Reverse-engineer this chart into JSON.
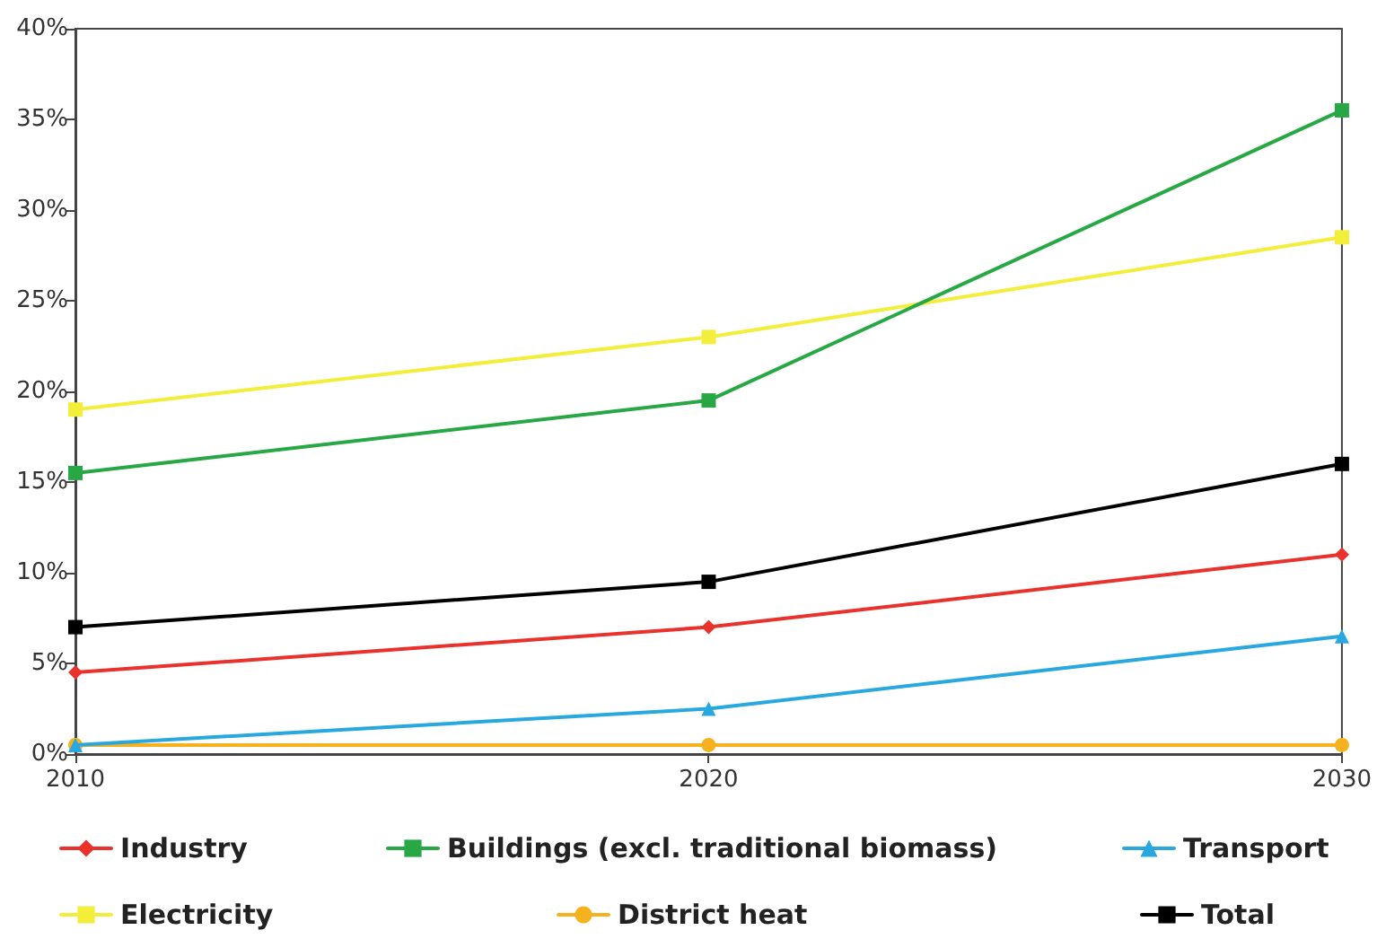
{
  "chart_data": {
    "type": "line",
    "x": [
      2010,
      2020,
      2030
    ],
    "xlim": [
      2010,
      2030
    ],
    "xticks": [
      2010,
      2020,
      2030
    ],
    "ylim": [
      0,
      40
    ],
    "yticks": [
      {
        "value": 0,
        "label": "0%"
      },
      {
        "value": 5,
        "label": "5%"
      },
      {
        "value": 10,
        "label": "10%"
      },
      {
        "value": 15,
        "label": "15%"
      },
      {
        "value": 20,
        "label": "20%"
      },
      {
        "value": 25,
        "label": "25%"
      },
      {
        "value": 30,
        "label": "30%"
      },
      {
        "value": 35,
        "label": "35%"
      },
      {
        "value": 40,
        "label": "40%"
      }
    ],
    "grid": false,
    "legend": "bottom",
    "line_style": "solid",
    "series": [
      {
        "name": "Industry",
        "color": "#e8322b",
        "marker": "diamond",
        "values": [
          4.5,
          7,
          11
        ]
      },
      {
        "name": "Buildings (excl. traditional biomass)",
        "color": "#27a845",
        "marker": "square",
        "values": [
          15.5,
          19.5,
          35.5
        ]
      },
      {
        "name": "Transport",
        "color": "#29a8e0",
        "marker": "triangle",
        "values": [
          0.5,
          2.5,
          6.5
        ]
      },
      {
        "name": "Electricity",
        "color": "#f2ee3a",
        "marker": "square",
        "values": [
          19,
          23,
          28.5
        ]
      },
      {
        "name": "District heat",
        "color": "#f5b21e",
        "marker": "circle",
        "values": [
          0.5,
          0.5,
          0.5
        ]
      },
      {
        "name": "Total",
        "color": "#000000",
        "marker": "square",
        "values": [
          7,
          9.5,
          16
        ]
      }
    ]
  }
}
